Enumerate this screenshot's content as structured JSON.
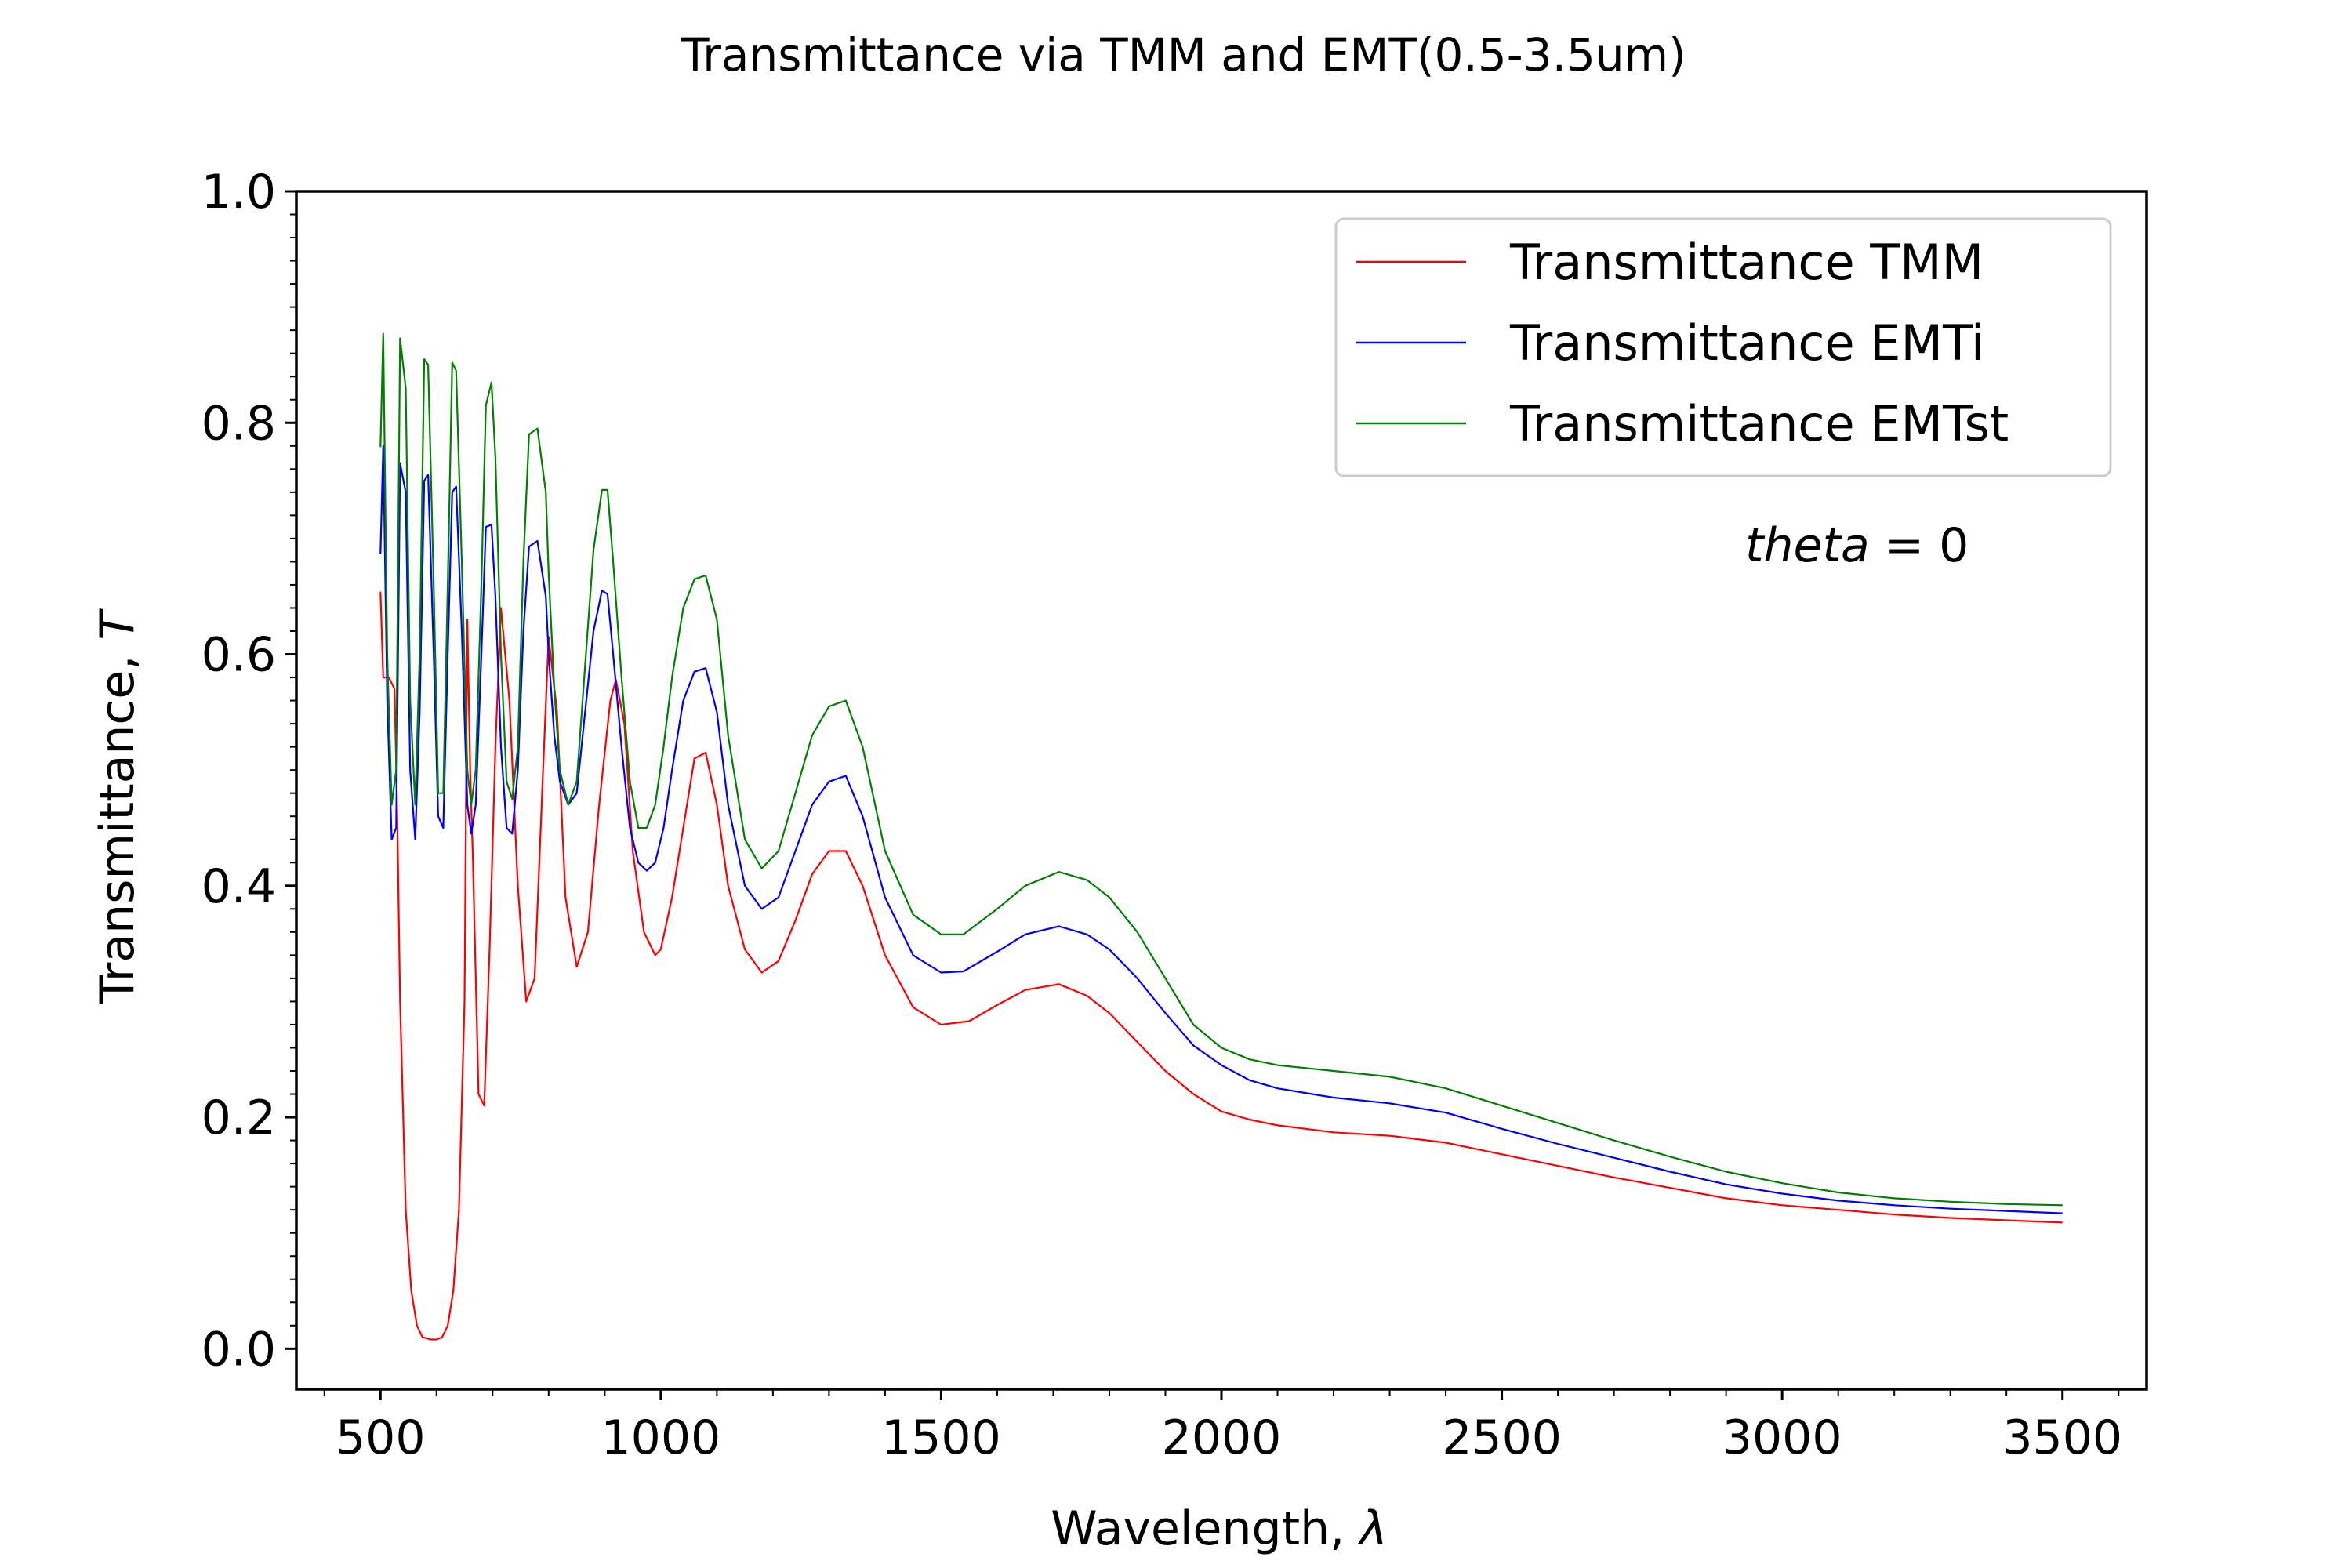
{
  "chart_data": {
    "type": "line",
    "title": "Transmittance via TMM and EMT(0.5-3.5um)",
    "xlabel": "Wavelength, ",
    "xlabel_symbol": "λ",
    "ylabel": "Transmittance, ",
    "ylabel_symbol": "T",
    "xlim": [
      350,
      3650
    ],
    "ylim": [
      -0.035,
      1.0
    ],
    "xticks": [
      500,
      1000,
      1500,
      2000,
      2500,
      3000,
      3500
    ],
    "xtick_labels": [
      "500",
      "1000",
      "1500",
      "2000",
      "2500",
      "3000",
      "3500"
    ],
    "yticks": [
      0.0,
      0.2,
      0.4,
      0.6,
      0.8,
      1.0
    ],
    "ytick_labels": [
      "0.0",
      "0.2",
      "0.4",
      "0.6",
      "0.8",
      "1.0"
    ],
    "grid": false,
    "legend_position": "top-right",
    "annotation": {
      "italic": "theta",
      "rest": " = 0"
    },
    "series": [
      {
        "name": "Transmittance TMM",
        "color": "#ff0000",
        "x": [
          500,
          505,
          515,
          525,
          530,
          535,
          545,
          555,
          565,
          575,
          590,
          600,
          610,
          620,
          630,
          640,
          650,
          655,
          660,
          665,
          675,
          685,
          695,
          705,
          715,
          730,
          745,
          760,
          775,
          790,
          800,
          815,
          830,
          850,
          870,
          890,
          910,
          920,
          935,
          950,
          970,
          990,
          1000,
          1020,
          1040,
          1060,
          1080,
          1100,
          1120,
          1150,
          1180,
          1210,
          1240,
          1270,
          1300,
          1330,
          1360,
          1400,
          1450,
          1500,
          1550,
          1600,
          1650,
          1710,
          1760,
          1800,
          1850,
          1900,
          1950,
          2000,
          2050,
          2100,
          2150,
          2200,
          2300,
          2400,
          2500,
          2600,
          2700,
          2800,
          2900,
          3000,
          3100,
          3200,
          3300,
          3400,
          3500
        ],
        "y": [
          0.654,
          0.58,
          0.58,
          0.57,
          0.46,
          0.3,
          0.12,
          0.05,
          0.02,
          0.01,
          0.008,
          0.008,
          0.01,
          0.02,
          0.05,
          0.12,
          0.3,
          0.63,
          0.5,
          0.42,
          0.22,
          0.21,
          0.35,
          0.52,
          0.64,
          0.56,
          0.4,
          0.3,
          0.32,
          0.5,
          0.615,
          0.55,
          0.39,
          0.33,
          0.36,
          0.47,
          0.56,
          0.578,
          0.54,
          0.43,
          0.36,
          0.34,
          0.345,
          0.39,
          0.45,
          0.51,
          0.515,
          0.47,
          0.4,
          0.345,
          0.325,
          0.335,
          0.37,
          0.41,
          0.43,
          0.43,
          0.4,
          0.34,
          0.295,
          0.28,
          0.283,
          0.297,
          0.31,
          0.315,
          0.305,
          0.29,
          0.265,
          0.24,
          0.22,
          0.205,
          0.198,
          0.193,
          0.19,
          0.187,
          0.184,
          0.178,
          0.168,
          0.158,
          0.148,
          0.139,
          0.13,
          0.124,
          0.12,
          0.116,
          0.113,
          0.111,
          0.109
        ]
      },
      {
        "name": "Transmittance EMTi",
        "color": "#0000ff",
        "x": [
          500,
          505,
          512,
          520,
          528,
          535,
          545,
          553,
          562,
          570,
          578,
          585,
          595,
          603,
          612,
          620,
          628,
          635,
          645,
          655,
          662,
          670,
          680,
          688,
          698,
          705,
          715,
          725,
          735,
          745,
          755,
          765,
          780,
          795,
          800,
          810,
          820,
          835,
          850,
          865,
          880,
          895,
          905,
          915,
          930,
          945,
          960,
          975,
          990,
          1005,
          1020,
          1040,
          1060,
          1080,
          1100,
          1120,
          1150,
          1180,
          1210,
          1240,
          1270,
          1300,
          1330,
          1360,
          1400,
          1450,
          1500,
          1540,
          1600,
          1650,
          1710,
          1760,
          1800,
          1850,
          1900,
          1950,
          2000,
          2050,
          2100,
          2200,
          2300,
          2400,
          2500,
          2600,
          2700,
          2800,
          2900,
          3000,
          3100,
          3200,
          3300,
          3400,
          3500
        ],
        "y": [
          0.687,
          0.78,
          0.56,
          0.44,
          0.45,
          0.765,
          0.74,
          0.5,
          0.44,
          0.55,
          0.75,
          0.755,
          0.6,
          0.46,
          0.45,
          0.6,
          0.74,
          0.745,
          0.62,
          0.47,
          0.445,
          0.47,
          0.6,
          0.71,
          0.712,
          0.65,
          0.52,
          0.45,
          0.445,
          0.5,
          0.62,
          0.693,
          0.698,
          0.65,
          0.6,
          0.53,
          0.49,
          0.47,
          0.48,
          0.55,
          0.62,
          0.655,
          0.652,
          0.6,
          0.52,
          0.45,
          0.42,
          0.413,
          0.42,
          0.45,
          0.5,
          0.56,
          0.585,
          0.588,
          0.55,
          0.47,
          0.4,
          0.38,
          0.39,
          0.43,
          0.47,
          0.49,
          0.495,
          0.46,
          0.39,
          0.34,
          0.325,
          0.326,
          0.343,
          0.358,
          0.365,
          0.358,
          0.345,
          0.32,
          0.29,
          0.262,
          0.245,
          0.232,
          0.225,
          0.217,
          0.212,
          0.204,
          0.19,
          0.177,
          0.165,
          0.153,
          0.142,
          0.134,
          0.128,
          0.124,
          0.121,
          0.119,
          0.117
        ]
      },
      {
        "name": "Transmittance EMTst",
        "color": "#008000",
        "x": [
          500,
          505,
          512,
          520,
          528,
          535,
          545,
          553,
          562,
          570,
          578,
          585,
          595,
          603,
          612,
          620,
          628,
          635,
          645,
          655,
          662,
          670,
          680,
          688,
          698,
          705,
          715,
          725,
          735,
          745,
          755,
          765,
          780,
          795,
          800,
          810,
          820,
          835,
          850,
          865,
          880,
          895,
          905,
          915,
          930,
          945,
          960,
          975,
          990,
          1005,
          1020,
          1040,
          1060,
          1080,
          1100,
          1120,
          1150,
          1180,
          1210,
          1240,
          1270,
          1300,
          1330,
          1360,
          1400,
          1450,
          1500,
          1540,
          1600,
          1650,
          1710,
          1760,
          1800,
          1850,
          1900,
          1950,
          2000,
          2050,
          2100,
          2200,
          2300,
          2400,
          2500,
          2600,
          2700,
          2800,
          2900,
          3000,
          3100,
          3200,
          3300,
          3400,
          3500
        ],
        "y": [
          0.779,
          0.877,
          0.6,
          0.47,
          0.5,
          0.873,
          0.83,
          0.56,
          0.47,
          0.6,
          0.855,
          0.85,
          0.66,
          0.48,
          0.48,
          0.66,
          0.852,
          0.845,
          0.68,
          0.5,
          0.47,
          0.5,
          0.66,
          0.815,
          0.835,
          0.77,
          0.6,
          0.49,
          0.475,
          0.52,
          0.68,
          0.79,
          0.795,
          0.74,
          0.67,
          0.57,
          0.5,
          0.47,
          0.49,
          0.59,
          0.69,
          0.742,
          0.742,
          0.68,
          0.58,
          0.49,
          0.45,
          0.45,
          0.47,
          0.52,
          0.58,
          0.64,
          0.665,
          0.668,
          0.63,
          0.53,
          0.44,
          0.415,
          0.43,
          0.48,
          0.53,
          0.555,
          0.56,
          0.52,
          0.43,
          0.375,
          0.358,
          0.358,
          0.38,
          0.4,
          0.412,
          0.405,
          0.39,
          0.36,
          0.32,
          0.28,
          0.26,
          0.25,
          0.245,
          0.24,
          0.235,
          0.225,
          0.21,
          0.195,
          0.18,
          0.166,
          0.153,
          0.143,
          0.135,
          0.13,
          0.127,
          0.125,
          0.124
        ]
      }
    ]
  }
}
